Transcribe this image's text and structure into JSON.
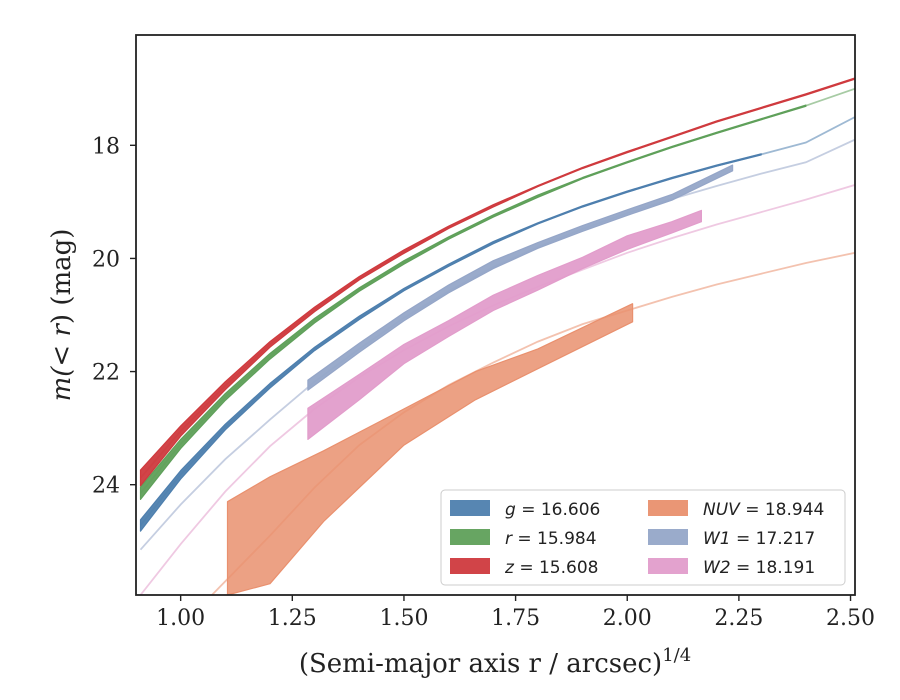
{
  "chart_data": {
    "type": "line",
    "xlabel": "(Semi-major axis r / arcsec)",
    "xlabel_exponent": "1/4",
    "ylabel_prefix": "m(",
    "ylabel_var": "< r",
    "ylabel_suffix": ") (mag)",
    "xlim": [
      0.9,
      2.51
    ],
    "ylim": [
      25.95,
      16.05
    ],
    "y_inverted": true,
    "xticks": [
      1.0,
      1.25,
      1.5,
      1.75,
      2.0,
      2.25,
      2.5
    ],
    "xtick_labels": [
      "1.00",
      "1.25",
      "1.50",
      "1.75",
      "2.00",
      "2.25",
      "2.50"
    ],
    "yticks": [
      18,
      20,
      22,
      24
    ],
    "ytick_labels": [
      "18",
      "20",
      "22",
      "24"
    ],
    "grid": false,
    "legend": {
      "placement": "bottom-right",
      "columns": 2
    },
    "series": [
      {
        "name": "g",
        "value": "16.606",
        "color": "#4e7fae",
        "x": [
          0.91,
          1.0,
          1.1,
          1.2,
          1.3,
          1.4,
          1.5,
          1.6,
          1.7,
          1.8,
          1.9,
          2.0,
          2.1,
          2.2,
          2.3,
          2.4,
          2.51
        ],
        "y": [
          24.72,
          23.82,
          22.98,
          22.25,
          21.6,
          21.05,
          20.55,
          20.12,
          19.72,
          19.38,
          19.08,
          18.82,
          18.58,
          18.36,
          18.16,
          17.95,
          17.5
        ],
        "band_lo": [
          24.62,
          23.75,
          22.93,
          22.21,
          21.57,
          21.02,
          20.53,
          20.1,
          19.7,
          19.37,
          19.07,
          18.81,
          18.57,
          18.35,
          18.15,
          17.94,
          17.49
        ],
        "band_hi": [
          24.82,
          23.9,
          23.03,
          22.29,
          21.63,
          21.08,
          20.57,
          20.14,
          19.74,
          19.39,
          19.09,
          18.83,
          18.59,
          18.37,
          18.17,
          17.96,
          17.51
        ],
        "band_xmax": 2.37
      },
      {
        "name": "r",
        "value": "15.984",
        "color": "#5fa05a",
        "x": [
          0.91,
          1.0,
          1.1,
          1.2,
          1.3,
          1.4,
          1.5,
          1.6,
          1.7,
          1.8,
          1.9,
          2.0,
          2.1,
          2.2,
          2.3,
          2.4,
          2.51
        ],
        "y": [
          24.15,
          23.28,
          22.45,
          21.73,
          21.1,
          20.55,
          20.07,
          19.64,
          19.25,
          18.9,
          18.58,
          18.3,
          18.03,
          17.78,
          17.54,
          17.3,
          17.0
        ],
        "band_lo": [
          24.04,
          23.2,
          22.39,
          21.68,
          21.06,
          20.52,
          20.04,
          19.62,
          19.23,
          18.88,
          18.57,
          18.29,
          18.02,
          17.77,
          17.53,
          17.29,
          16.99
        ],
        "band_hi": [
          24.26,
          23.36,
          22.51,
          21.78,
          21.14,
          20.58,
          20.1,
          19.66,
          19.27,
          18.92,
          18.59,
          18.31,
          18.04,
          17.79,
          17.55,
          17.31,
          17.01
        ],
        "band_xmax": 2.46
      },
      {
        "name": "z",
        "value": "15.608",
        "color": "#cf3a3e",
        "x": [
          0.91,
          1.0,
          1.1,
          1.2,
          1.3,
          1.4,
          1.5,
          1.6,
          1.7,
          1.8,
          1.9,
          2.0,
          2.1,
          2.2,
          2.3,
          2.4,
          2.51
        ],
        "y": [
          23.88,
          23.05,
          22.25,
          21.52,
          20.9,
          20.35,
          19.88,
          19.45,
          19.07,
          18.72,
          18.4,
          18.12,
          17.85,
          17.58,
          17.34,
          17.1,
          16.82
        ],
        "band_lo": [
          23.74,
          22.96,
          22.18,
          21.47,
          20.86,
          20.32,
          19.85,
          19.43,
          19.05,
          18.71,
          18.39,
          18.11,
          17.84,
          17.57,
          17.33,
          17.09,
          16.81
        ],
        "band_hi": [
          24.02,
          23.14,
          22.32,
          21.57,
          20.94,
          20.38,
          19.91,
          19.47,
          19.09,
          18.73,
          18.41,
          18.13,
          17.86,
          17.59,
          17.35,
          17.11,
          16.83
        ],
        "band_xmax": 2.51
      },
      {
        "name": "NUV",
        "value": "18.944",
        "color": "#e9906e",
        "x": [
          1.07,
          1.2,
          1.3,
          1.4,
          1.5,
          1.6,
          1.7,
          1.8,
          1.9,
          2.0,
          2.1,
          2.2,
          2.3,
          2.4,
          2.51
        ],
        "y": [
          25.95,
          24.9,
          24.05,
          23.3,
          22.72,
          22.24,
          21.84,
          21.47,
          21.16,
          20.92,
          20.68,
          20.46,
          20.27,
          20.08,
          19.9
        ],
        "band_x": [
          1.105,
          1.2,
          1.32,
          1.5,
          1.66,
          1.8,
          2.012
        ],
        "band_lo": [
          24.3,
          23.86,
          23.4,
          22.66,
          22.0,
          21.6,
          20.8
        ],
        "band_hi": [
          25.95,
          25.75,
          24.65,
          23.3,
          22.5,
          21.95,
          21.12
        ]
      },
      {
        "name": "W1",
        "value": "17.217",
        "color": "#95a6c8",
        "x": [
          0.91,
          1.0,
          1.1,
          1.2,
          1.3,
          1.4,
          1.5,
          1.6,
          1.7,
          1.8,
          1.9,
          2.0,
          2.1,
          2.2,
          2.3,
          2.4,
          2.51
        ],
        "y": [
          25.15,
          24.35,
          23.55,
          22.85,
          22.18,
          21.6,
          21.05,
          20.58,
          20.15,
          19.8,
          19.48,
          19.2,
          18.95,
          18.72,
          18.5,
          18.3,
          17.9
        ],
        "band_x": [
          1.285,
          1.4,
          1.5,
          1.6,
          1.7,
          1.8,
          1.9,
          2.0,
          2.1,
          2.236
        ],
        "band_lo": [
          22.15,
          21.5,
          20.96,
          20.47,
          20.04,
          19.72,
          19.42,
          19.14,
          18.87,
          18.35
        ],
        "band_hi": [
          22.33,
          21.66,
          21.1,
          20.61,
          20.18,
          19.82,
          19.52,
          19.24,
          18.97,
          18.45
        ]
      },
      {
        "name": "W2",
        "value": "18.191",
        "color": "#e29dcb",
        "x": [
          0.91,
          1.0,
          1.1,
          1.2,
          1.3,
          1.4,
          1.5,
          1.6,
          1.7,
          1.8,
          1.9,
          2.0,
          2.1,
          2.2,
          2.3,
          2.4,
          2.51
        ],
        "y": [
          25.95,
          25.05,
          24.12,
          23.32,
          22.66,
          22.1,
          21.62,
          21.2,
          20.83,
          20.5,
          20.2,
          19.9,
          19.64,
          19.4,
          19.18,
          18.96,
          18.7
        ],
        "band_x": [
          1.285,
          1.4,
          1.5,
          1.6,
          1.7,
          1.8,
          1.9,
          2.0,
          2.1,
          2.166
        ],
        "band_lo": [
          22.65,
          22.05,
          21.52,
          21.1,
          20.65,
          20.3,
          19.98,
          19.6,
          19.35,
          19.15
        ],
        "band_hi": [
          23.2,
          22.5,
          21.86,
          21.38,
          20.92,
          20.56,
          20.18,
          19.84,
          19.55,
          19.35
        ]
      }
    ]
  }
}
